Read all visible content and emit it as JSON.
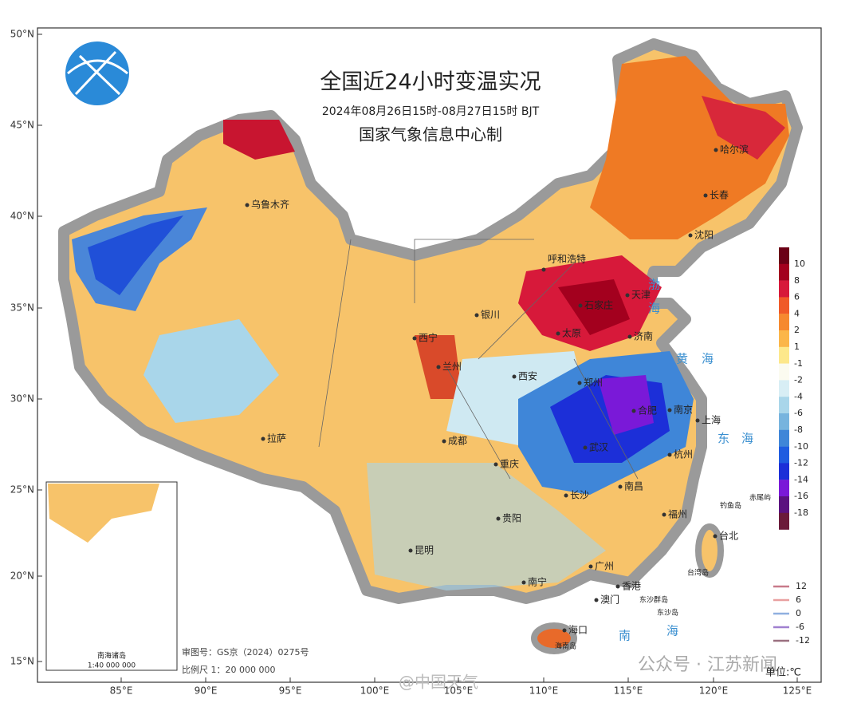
{
  "header": {
    "title": "全国近24小时变温实况",
    "subtitle": "2024年08月26日15时-08月27日15时 BJT",
    "producer": "国家气象信息中心制"
  },
  "axes": {
    "lat": [
      "50°N",
      "45°N",
      "40°N",
      "35°N",
      "30°N",
      "25°N",
      "20°N",
      "15°N"
    ],
    "lon": [
      "85°E",
      "90°E",
      "95°E",
      "100°E",
      "105°E",
      "110°E",
      "115°E",
      "120°E",
      "125°E"
    ]
  },
  "cities": [
    "乌鲁木齐",
    "哈尔滨",
    "长春",
    "沈阳",
    "呼和浩特",
    "天津",
    "石家庄",
    "银川",
    "太原",
    "济南",
    "西宁",
    "兰州",
    "西安",
    "郑州",
    "合肥",
    "南京",
    "上海",
    "成都",
    "拉萨",
    "武汉",
    "杭州",
    "重庆",
    "长沙",
    "南昌",
    "福州",
    "贵阳",
    "昆明",
    "台北",
    "南宁",
    "广州",
    "香港",
    "澳门",
    "海口"
  ],
  "places": [
    "海南岛",
    "钓鱼岛",
    "赤尾屿",
    "台湾岛",
    "东沙群岛",
    "东沙岛"
  ],
  "seas": [
    "渤",
    "海",
    "黄",
    "海",
    "东",
    "海",
    "南",
    "海"
  ],
  "legend": {
    "values": [
      10,
      8,
      6,
      4,
      2,
      1,
      -1,
      -2,
      -4,
      -6,
      -8,
      -10,
      -12,
      -14,
      -16,
      -18
    ],
    "unit": "单位:℃"
  },
  "line_legend": {
    "values": [
      12,
      6,
      0,
      -6,
      -12
    ]
  },
  "inset": {
    "title": "南海诸岛",
    "scale": "1:40 000 000"
  },
  "footer": {
    "review": "审图号：GS京（2024）0275号",
    "scale": "比例尺 1：20 000 000"
  },
  "watermarks": [
    "@中国天气",
    "公众号 · 江苏新闻"
  ]
}
